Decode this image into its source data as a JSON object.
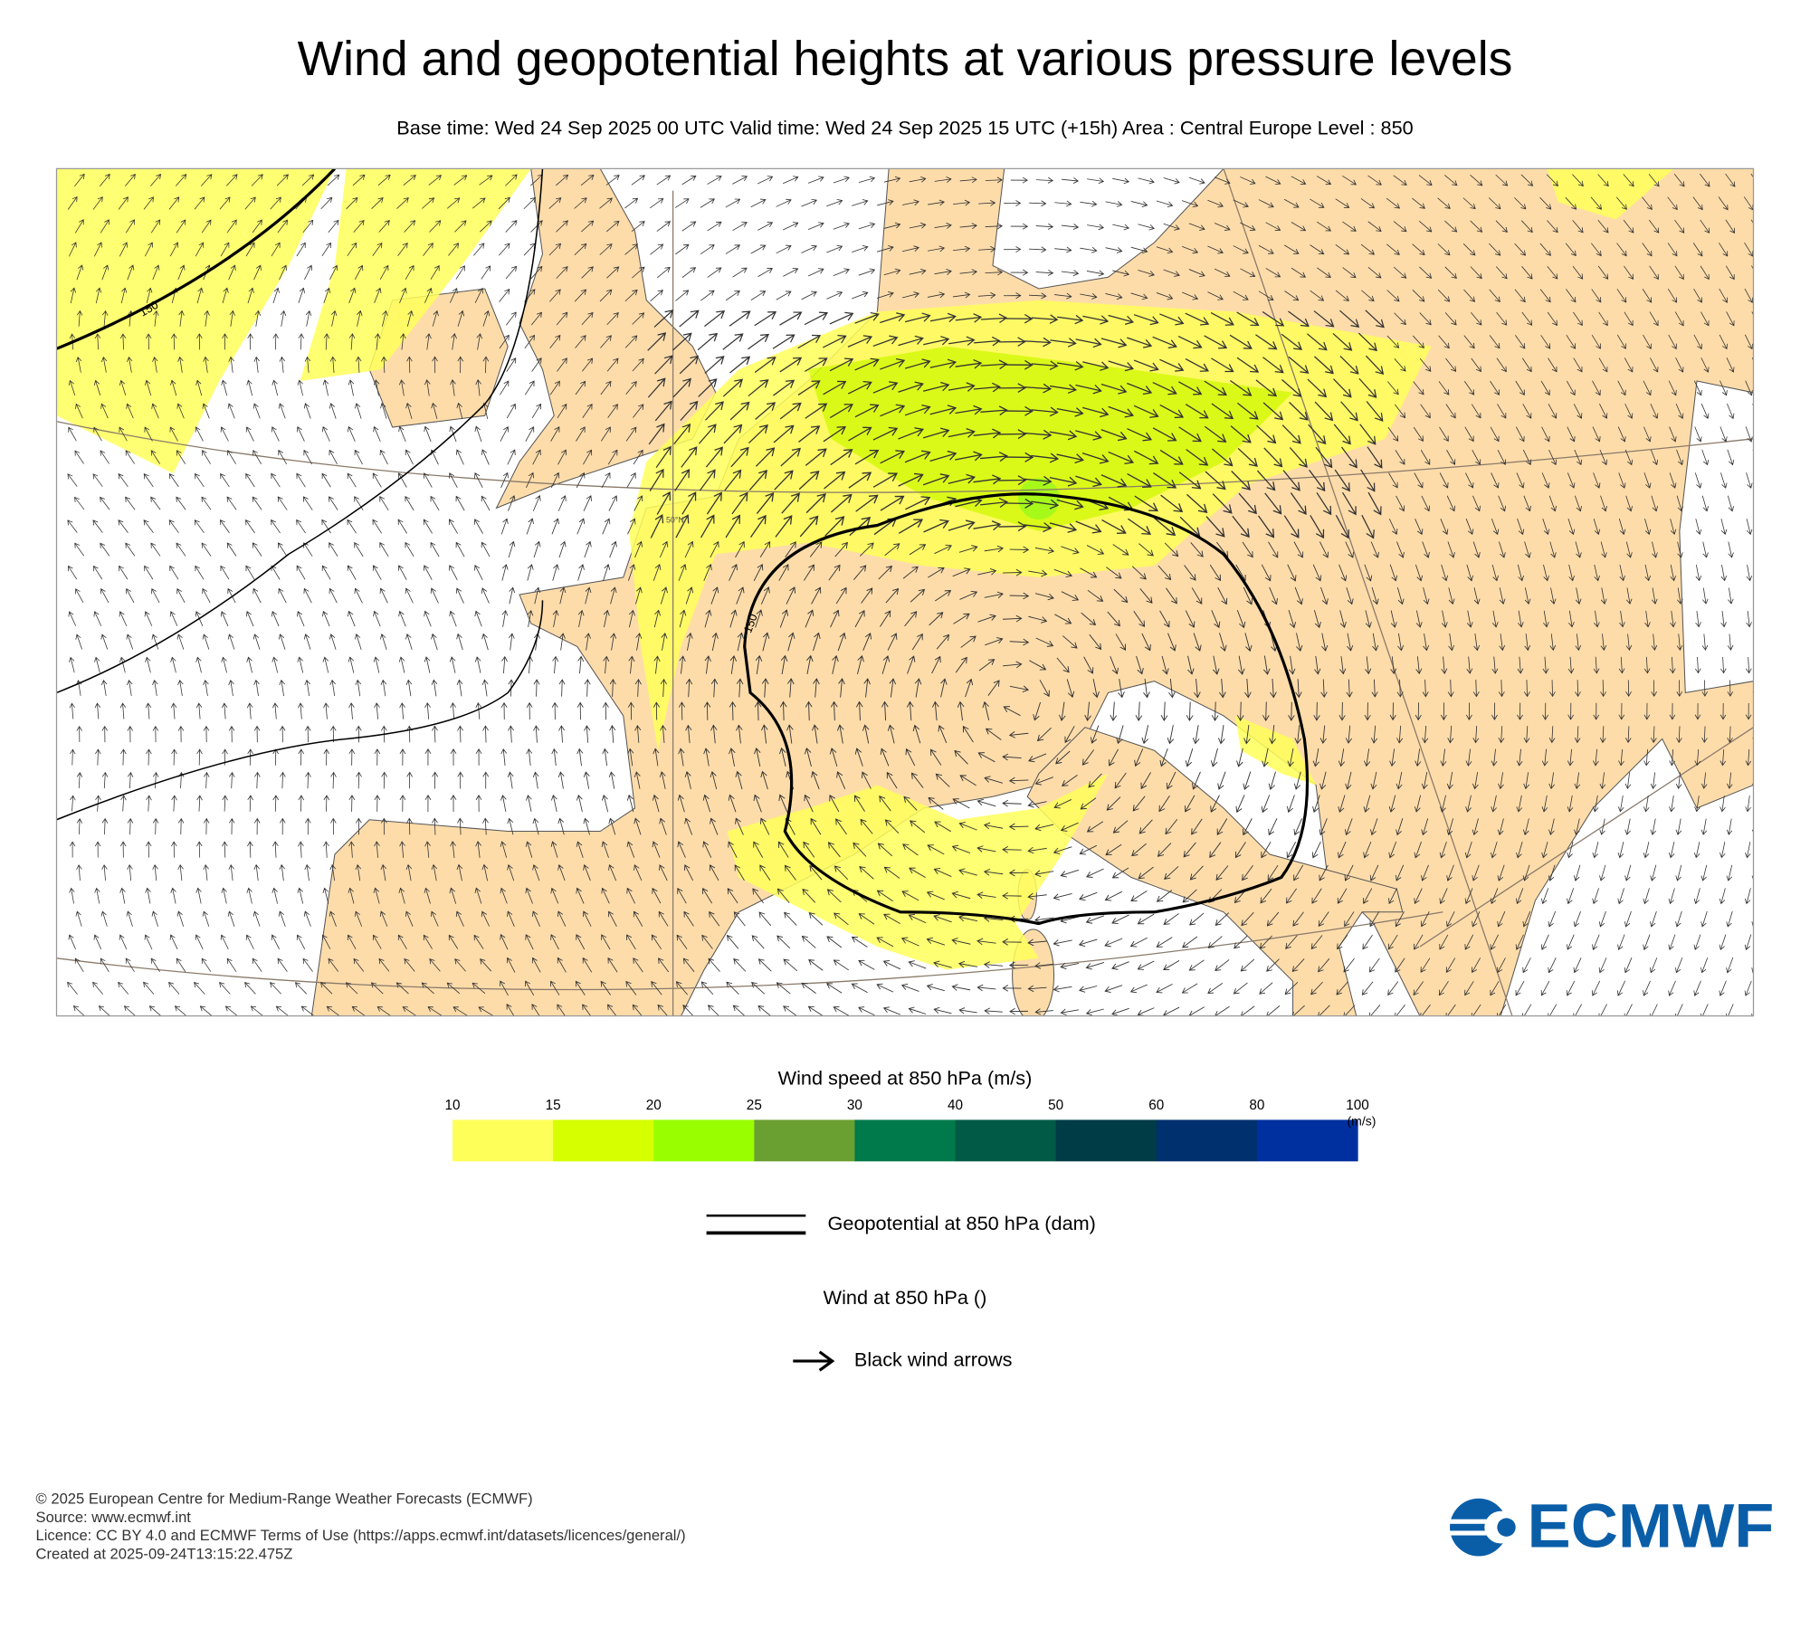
{
  "header": {
    "title": "Wind and geopotential heights at various pressure levels",
    "subtitle": "Base time: Wed 24 Sep 2025 00 UTC Valid time: Wed 24 Sep 2025 15 UTC (+15h) Area : Central Europe Level : 850"
  },
  "map": {
    "contour_labels": [
      "150",
      "150"
    ],
    "parallel_label": "50°N"
  },
  "legend": {
    "title": "Wind speed at 850 hPa (m/s)",
    "ticks": [
      10,
      15,
      20,
      25,
      30,
      40,
      50,
      60,
      80,
      100
    ],
    "unit": "(m/s)",
    "colors": [
      "#ffff5a",
      "#d6ff00",
      "#99ff00",
      "#6aa032",
      "#007a4a",
      "#005a46",
      "#003c46",
      "#00306e",
      "#0030a0"
    ]
  },
  "geopotential_legend": "Geopotential at 850 hPa (dam)",
  "wind_legend": {
    "title": "Wind at 850 hPa ()",
    "arrows": "Black wind arrows"
  },
  "footer": {
    "lines": [
      "© 2025 European Centre for Medium-Range Weather Forecasts (ECMWF)",
      "Source: www.ecmwf.int",
      "Licence: CC BY 4.0 and ECMWF Terms of Use (https://apps.ecmwf.int/datasets/licences/general/)",
      "Created at 2025-09-24T13:15:22.475Z"
    ]
  },
  "logo": "ECMWF"
}
